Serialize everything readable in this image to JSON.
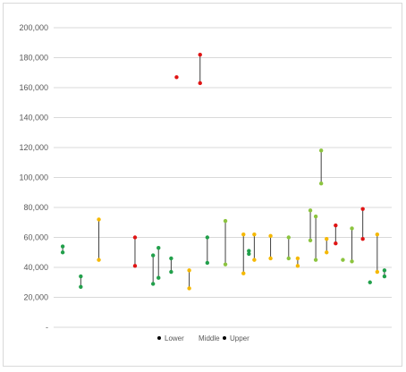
{
  "chart_data": {
    "type": "scatter",
    "title": "",
    "xlabel": "",
    "ylabel": "",
    "ylim": [
      0,
      200000
    ],
    "y_ticks": [
      0,
      20000,
      40000,
      60000,
      80000,
      100000,
      120000,
      140000,
      160000,
      180000,
      200000
    ],
    "y_tick_labels": [
      "-",
      "20,000",
      "40,000",
      "60,000",
      "80,000",
      "100,000",
      "120,000",
      "140,000",
      "160,000",
      "180,000",
      "200,000"
    ],
    "grid": "horizontal",
    "legend_position": "bottom",
    "legend": [
      "Lower",
      "Middle",
      "Upper"
    ],
    "colors": {
      "green": "#22a04b",
      "lightgreen": "#8cc43f",
      "yellow": "#f5b800",
      "red": "#e01414",
      "line": "#404040",
      "grid": "#d9d9d9",
      "legend_dot": "#000000"
    },
    "points": [
      {
        "x": 1,
        "lower": 50000,
        "upper": 54000,
        "color": "green"
      },
      {
        "x": 2,
        "lower": 27000,
        "upper": 34000,
        "color": "green"
      },
      {
        "x": 3,
        "lower": 45000,
        "upper": 72000,
        "color": "yellow"
      },
      {
        "x": 5,
        "lower": 41000,
        "upper": 60000,
        "color": "red"
      },
      {
        "x": 6,
        "lower": 29000,
        "upper": 48000,
        "color": "green"
      },
      {
        "x": 6.3,
        "lower": 33000,
        "upper": 53000,
        "color": "green"
      },
      {
        "x": 7,
        "lower": 37000,
        "upper": 46000,
        "color": "green"
      },
      {
        "x": 7.3,
        "lower": 167000,
        "upper": 167000,
        "color": "red"
      },
      {
        "x": 8,
        "lower": 26000,
        "upper": 38000,
        "color": "yellow"
      },
      {
        "x": 8.6,
        "lower": 163000,
        "upper": 182000,
        "color": "red"
      },
      {
        "x": 9,
        "lower": 43000,
        "upper": 60000,
        "color": "green"
      },
      {
        "x": 10,
        "lower": 42000,
        "upper": 71000,
        "color": "lightgreen"
      },
      {
        "x": 11,
        "lower": 36000,
        "upper": 62000,
        "color": "yellow"
      },
      {
        "x": 11.3,
        "lower": 49000,
        "upper": 51000,
        "color": "green"
      },
      {
        "x": 11.6,
        "lower": 45000,
        "upper": 62000,
        "color": "yellow"
      },
      {
        "x": 12.5,
        "lower": 46000,
        "upper": 61000,
        "color": "yellow"
      },
      {
        "x": 13.5,
        "lower": 46000,
        "upper": 60000,
        "color": "lightgreen"
      },
      {
        "x": 14,
        "lower": 41000,
        "upper": 46000,
        "color": "yellow"
      },
      {
        "x": 14.7,
        "lower": 58000,
        "upper": 78000,
        "color": "lightgreen"
      },
      {
        "x": 15,
        "lower": 45000,
        "upper": 74000,
        "color": "lightgreen"
      },
      {
        "x": 15.3,
        "lower": 96000,
        "upper": 118000,
        "color": "lightgreen"
      },
      {
        "x": 15.6,
        "lower": 50000,
        "upper": 59000,
        "color": "yellow"
      },
      {
        "x": 16.1,
        "lower": 56000,
        "upper": 68000,
        "color": "red"
      },
      {
        "x": 16.5,
        "lower": 45000,
        "upper": 45000,
        "color": "lightgreen"
      },
      {
        "x": 17,
        "lower": 44000,
        "upper": 66000,
        "color": "lightgreen"
      },
      {
        "x": 17.6,
        "lower": 59000,
        "upper": 79000,
        "color": "red"
      },
      {
        "x": 18,
        "lower": 30000,
        "upper": 30000,
        "color": "green"
      },
      {
        "x": 18.4,
        "lower": 37000,
        "upper": 62000,
        "color": "yellow"
      },
      {
        "x": 18.8,
        "lower": 34000,
        "upper": 38000,
        "color": "green"
      }
    ]
  }
}
